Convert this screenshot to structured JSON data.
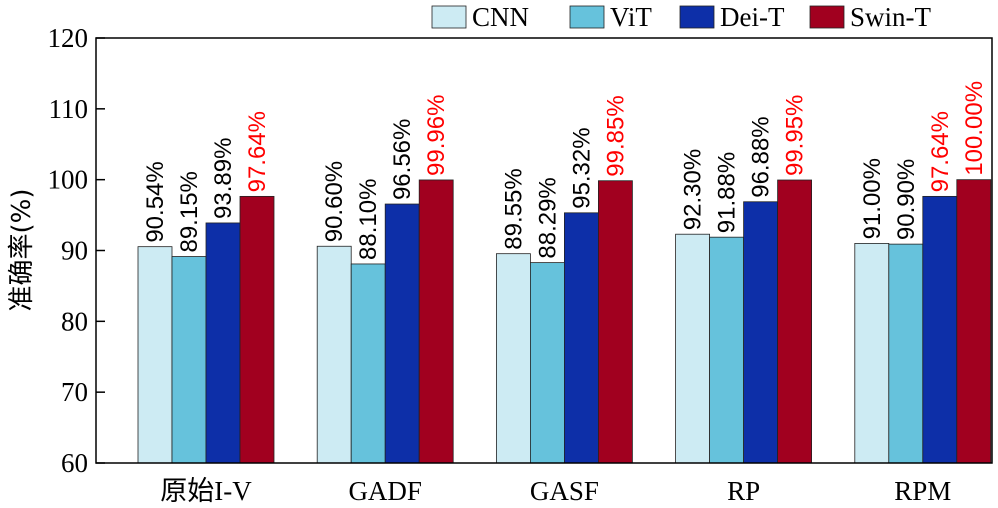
{
  "chart_data": {
    "type": "bar",
    "title": "",
    "xlabel": "",
    "ylabel": "准确率(%)",
    "ylim": [
      60,
      120
    ],
    "yticks": [
      60,
      70,
      80,
      90,
      100,
      110,
      120
    ],
    "categories": [
      "原始I-V",
      "GADF",
      "GASF",
      "RP",
      "RPM"
    ],
    "series": [
      {
        "name": "CNN",
        "color": "#cdebf3",
        "values": [
          90.54,
          90.6,
          89.55,
          92.3,
          91.0
        ],
        "labels": [
          "90.54%",
          "90.60%",
          "89.55%",
          "92.30%",
          "91.00%"
        ],
        "label_colors": [
          "#000000",
          "#000000",
          "#000000",
          "#000000",
          "#000000"
        ]
      },
      {
        "name": "ViT",
        "color": "#66c2dc",
        "values": [
          89.15,
          88.1,
          88.29,
          91.88,
          90.9
        ],
        "labels": [
          "89.15%",
          "88.10%",
          "88.29%",
          "91.88%",
          "90.90%"
        ],
        "label_colors": [
          "#000000",
          "#000000",
          "#000000",
          "#000000",
          "#000000"
        ]
      },
      {
        "name": "Dei-T",
        "color": "#0d2fa8",
        "values": [
          93.89,
          96.56,
          95.32,
          96.88,
          97.64
        ],
        "labels": [
          "93.89%",
          "96.56%",
          "95.32%",
          "96.88%",
          "97.64%"
        ],
        "label_colors": [
          "#000000",
          "#000000",
          "#000000",
          "#000000",
          "#ff0000"
        ]
      },
      {
        "name": "Swin-T",
        "color": "#a1001f",
        "values": [
          97.64,
          99.96,
          99.85,
          99.95,
          100.0
        ],
        "labels": [
          "97.64%",
          "99.96%",
          "99.85%",
          "99.95%",
          "100.00%"
        ],
        "label_colors": [
          "#ff0000",
          "#ff0000",
          "#ff0000",
          "#ff0000",
          "#ff0000"
        ]
      }
    ],
    "legend_position": "top-right",
    "grid": false
  }
}
